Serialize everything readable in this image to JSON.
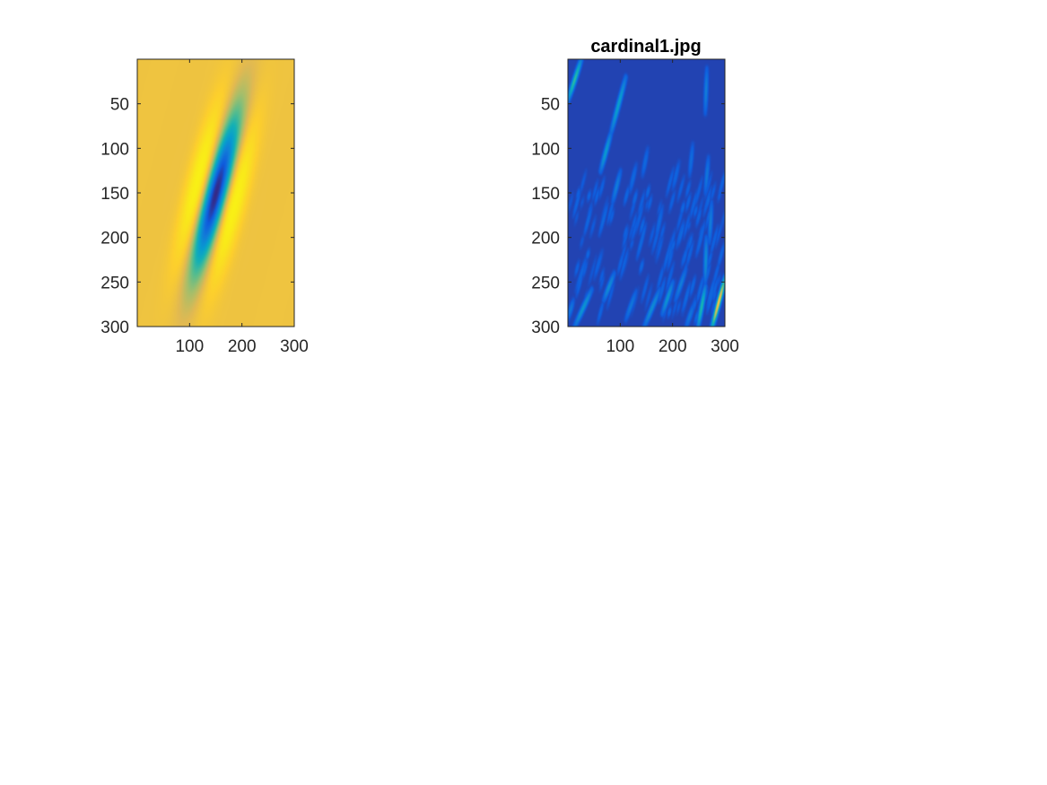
{
  "figure": {
    "background": "#ffffff"
  },
  "chart_data": [
    {
      "type": "heatmap",
      "title": "",
      "xlabel": "",
      "ylabel": "",
      "xlim": [
        0,
        300
      ],
      "ylim": [
        0,
        300
      ],
      "y_reversed": true,
      "xticks": [
        100,
        200,
        300
      ],
      "xtick_labels": [
        "100",
        "200",
        "300"
      ],
      "yticks": [
        50,
        100,
        150,
        200,
        250,
        300
      ],
      "ytick_labels": [
        "50",
        "100",
        "150",
        "200",
        "250",
        "300"
      ],
      "colormap": "parula",
      "content": "oriented Gabor filter kernel, elongated along a diagonal axis",
      "kernel": {
        "center_x": 150,
        "center_y": 150,
        "sigma_major": 68,
        "sigma_minor": 26,
        "axis_slope_dx_per_dy": 0.45,
        "period": 100,
        "background_level": 0.75
      },
      "grid": false
    },
    {
      "type": "heatmap",
      "title": "cardinal1.jpg",
      "xlabel": "",
      "ylabel": "",
      "xlim": [
        0,
        300
      ],
      "ylim": [
        0,
        300
      ],
      "y_reversed": true,
      "xticks": [
        100,
        200,
        300
      ],
      "xtick_labels": [
        "100",
        "200",
        "300"
      ],
      "yticks": [
        50,
        100,
        150,
        200,
        250,
        300
      ],
      "ytick_labels": [
        "50",
        "100",
        "150",
        "200",
        "250",
        "300"
      ],
      "colormap": "parula",
      "content": "filter response magnitude; mostly low values with sparse bright diagonal streaks",
      "background_level": 0.05,
      "streaks": [
        {
          "x1": 0,
          "y1": 45,
          "x2": 25,
          "y2": 0,
          "level": 0.45
        },
        {
          "x1": 82,
          "y1": 82,
          "x2": 110,
          "y2": 20,
          "level": 0.32
        },
        {
          "x1": 62,
          "y1": 125,
          "x2": 82,
          "y2": 82,
          "level": 0.3
        },
        {
          "x1": 85,
          "y1": 160,
          "x2": 100,
          "y2": 125,
          "level": 0.2
        },
        {
          "x1": 118,
          "y1": 148,
          "x2": 130,
          "y2": 118,
          "level": 0.14
        },
        {
          "x1": 142,
          "y1": 130,
          "x2": 152,
          "y2": 100,
          "level": 0.14
        },
        {
          "x1": 168,
          "y1": 200,
          "x2": 180,
          "y2": 165,
          "level": 0.14
        },
        {
          "x1": 200,
          "y1": 145,
          "x2": 212,
          "y2": 115,
          "level": 0.13
        },
        {
          "x1": 232,
          "y1": 130,
          "x2": 238,
          "y2": 95,
          "level": 0.15
        },
        {
          "x1": 262,
          "y1": 150,
          "x2": 268,
          "y2": 110,
          "level": 0.18
        },
        {
          "x1": 262,
          "y1": 250,
          "x2": 264,
          "y2": 200,
          "level": 0.25
        },
        {
          "x1": 262,
          "y1": 60,
          "x2": 265,
          "y2": 10,
          "level": 0.2
        },
        {
          "x1": 270,
          "y1": 205,
          "x2": 274,
          "y2": 160,
          "level": 0.2
        },
        {
          "x1": 248,
          "y1": 300,
          "x2": 262,
          "y2": 255,
          "level": 0.42
        },
        {
          "x1": 275,
          "y1": 300,
          "x2": 300,
          "y2": 245,
          "level": 0.75
        },
        {
          "x1": 180,
          "y1": 285,
          "x2": 200,
          "y2": 250,
          "level": 0.28
        },
        {
          "x1": 145,
          "y1": 300,
          "x2": 175,
          "y2": 258,
          "level": 0.25
        },
        {
          "x1": 110,
          "y1": 292,
          "x2": 130,
          "y2": 260,
          "level": 0.18
        },
        {
          "x1": 68,
          "y1": 270,
          "x2": 88,
          "y2": 240,
          "level": 0.25
        },
        {
          "x1": 12,
          "y1": 300,
          "x2": 45,
          "y2": 258,
          "level": 0.28
        },
        {
          "x1": 15,
          "y1": 260,
          "x2": 35,
          "y2": 222,
          "level": 0.13
        },
        {
          "x1": 50,
          "y1": 245,
          "x2": 65,
          "y2": 215,
          "level": 0.12
        },
        {
          "x1": 205,
          "y1": 270,
          "x2": 225,
          "y2": 235,
          "level": 0.2
        },
        {
          "x1": 225,
          "y1": 300,
          "x2": 240,
          "y2": 275,
          "level": 0.18
        },
        {
          "x1": 120,
          "y1": 205,
          "x2": 135,
          "y2": 175,
          "level": 0.11
        },
        {
          "x1": 190,
          "y1": 235,
          "x2": 200,
          "y2": 210,
          "level": 0.12
        },
        {
          "x1": 100,
          "y1": 245,
          "x2": 115,
          "y2": 215,
          "level": 0.1
        },
        {
          "x1": 0,
          "y1": 290,
          "x2": 10,
          "y2": 270,
          "level": 0.18
        }
      ],
      "grid": false
    }
  ]
}
